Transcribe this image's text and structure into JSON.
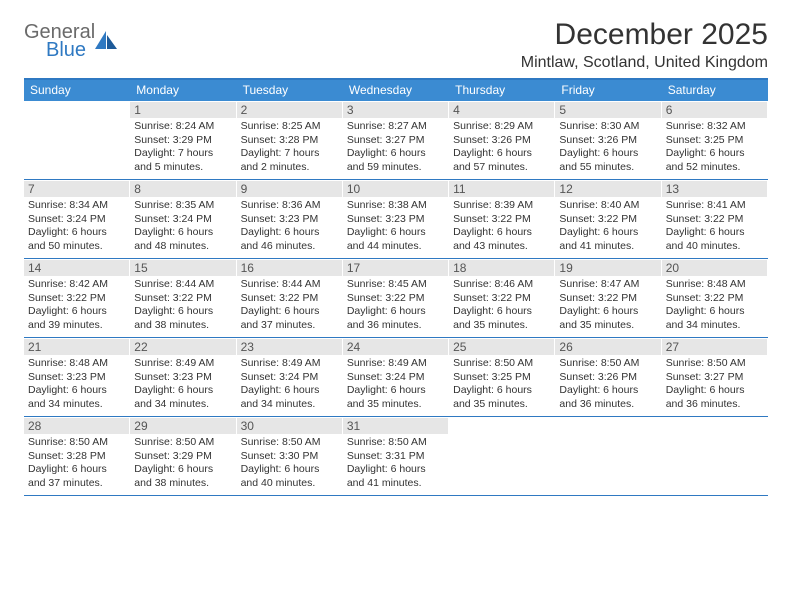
{
  "brand": {
    "line1": "General",
    "line2": "Blue",
    "icon_color": "#2f79c2",
    "text_gray": "#6a6a6a"
  },
  "title": "December 2025",
  "location": "Mintlaw, Scotland, United Kingdom",
  "colors": {
    "header_bar": "#3b8bd2",
    "rule": "#2f79c2",
    "daynum_bg": "#e6e6e6",
    "daynum_fg": "#555555",
    "text": "#333333",
    "bg": "#ffffff"
  },
  "dow": [
    "Sunday",
    "Monday",
    "Tuesday",
    "Wednesday",
    "Thursday",
    "Friday",
    "Saturday"
  ],
  "weeks": [
    [
      null,
      {
        "n": "1",
        "sr": "8:24 AM",
        "ss": "3:29 PM",
        "dl": "7 hours and 5 minutes."
      },
      {
        "n": "2",
        "sr": "8:25 AM",
        "ss": "3:28 PM",
        "dl": "7 hours and 2 minutes."
      },
      {
        "n": "3",
        "sr": "8:27 AM",
        "ss": "3:27 PM",
        "dl": "6 hours and 59 minutes."
      },
      {
        "n": "4",
        "sr": "8:29 AM",
        "ss": "3:26 PM",
        "dl": "6 hours and 57 minutes."
      },
      {
        "n": "5",
        "sr": "8:30 AM",
        "ss": "3:26 PM",
        "dl": "6 hours and 55 minutes."
      },
      {
        "n": "6",
        "sr": "8:32 AM",
        "ss": "3:25 PM",
        "dl": "6 hours and 52 minutes."
      }
    ],
    [
      {
        "n": "7",
        "sr": "8:34 AM",
        "ss": "3:24 PM",
        "dl": "6 hours and 50 minutes."
      },
      {
        "n": "8",
        "sr": "8:35 AM",
        "ss": "3:24 PM",
        "dl": "6 hours and 48 minutes."
      },
      {
        "n": "9",
        "sr": "8:36 AM",
        "ss": "3:23 PM",
        "dl": "6 hours and 46 minutes."
      },
      {
        "n": "10",
        "sr": "8:38 AM",
        "ss": "3:23 PM",
        "dl": "6 hours and 44 minutes."
      },
      {
        "n": "11",
        "sr": "8:39 AM",
        "ss": "3:22 PM",
        "dl": "6 hours and 43 minutes."
      },
      {
        "n": "12",
        "sr": "8:40 AM",
        "ss": "3:22 PM",
        "dl": "6 hours and 41 minutes."
      },
      {
        "n": "13",
        "sr": "8:41 AM",
        "ss": "3:22 PM",
        "dl": "6 hours and 40 minutes."
      }
    ],
    [
      {
        "n": "14",
        "sr": "8:42 AM",
        "ss": "3:22 PM",
        "dl": "6 hours and 39 minutes."
      },
      {
        "n": "15",
        "sr": "8:44 AM",
        "ss": "3:22 PM",
        "dl": "6 hours and 38 minutes."
      },
      {
        "n": "16",
        "sr": "8:44 AM",
        "ss": "3:22 PM",
        "dl": "6 hours and 37 minutes."
      },
      {
        "n": "17",
        "sr": "8:45 AM",
        "ss": "3:22 PM",
        "dl": "6 hours and 36 minutes."
      },
      {
        "n": "18",
        "sr": "8:46 AM",
        "ss": "3:22 PM",
        "dl": "6 hours and 35 minutes."
      },
      {
        "n": "19",
        "sr": "8:47 AM",
        "ss": "3:22 PM",
        "dl": "6 hours and 35 minutes."
      },
      {
        "n": "20",
        "sr": "8:48 AM",
        "ss": "3:22 PM",
        "dl": "6 hours and 34 minutes."
      }
    ],
    [
      {
        "n": "21",
        "sr": "8:48 AM",
        "ss": "3:23 PM",
        "dl": "6 hours and 34 minutes."
      },
      {
        "n": "22",
        "sr": "8:49 AM",
        "ss": "3:23 PM",
        "dl": "6 hours and 34 minutes."
      },
      {
        "n": "23",
        "sr": "8:49 AM",
        "ss": "3:24 PM",
        "dl": "6 hours and 34 minutes."
      },
      {
        "n": "24",
        "sr": "8:49 AM",
        "ss": "3:24 PM",
        "dl": "6 hours and 35 minutes."
      },
      {
        "n": "25",
        "sr": "8:50 AM",
        "ss": "3:25 PM",
        "dl": "6 hours and 35 minutes."
      },
      {
        "n": "26",
        "sr": "8:50 AM",
        "ss": "3:26 PM",
        "dl": "6 hours and 36 minutes."
      },
      {
        "n": "27",
        "sr": "8:50 AM",
        "ss": "3:27 PM",
        "dl": "6 hours and 36 minutes."
      }
    ],
    [
      {
        "n": "28",
        "sr": "8:50 AM",
        "ss": "3:28 PM",
        "dl": "6 hours and 37 minutes."
      },
      {
        "n": "29",
        "sr": "8:50 AM",
        "ss": "3:29 PM",
        "dl": "6 hours and 38 minutes."
      },
      {
        "n": "30",
        "sr": "8:50 AM",
        "ss": "3:30 PM",
        "dl": "6 hours and 40 minutes."
      },
      {
        "n": "31",
        "sr": "8:50 AM",
        "ss": "3:31 PM",
        "dl": "6 hours and 41 minutes."
      },
      null,
      null,
      null
    ]
  ],
  "labels": {
    "sunrise": "Sunrise:",
    "sunset": "Sunset:",
    "daylight": "Daylight:"
  }
}
